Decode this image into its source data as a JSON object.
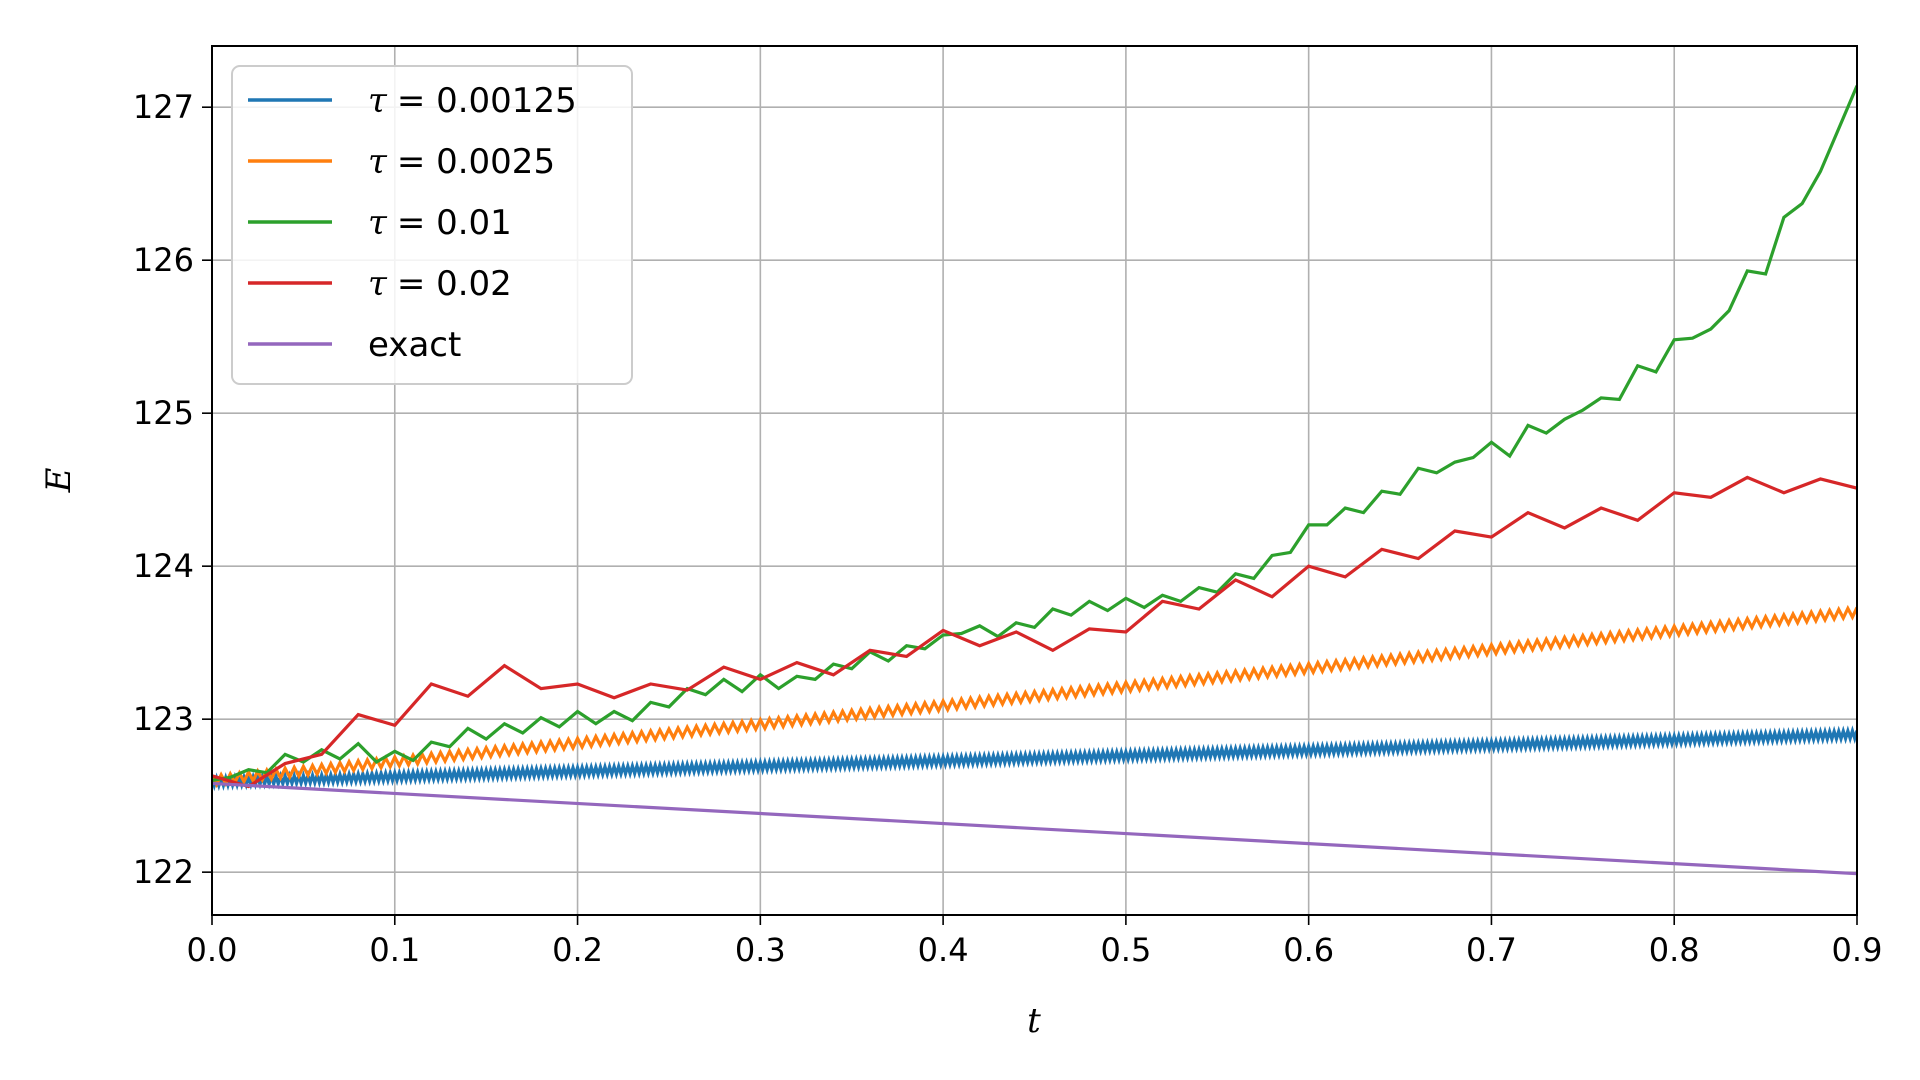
{
  "chart_data": {
    "type": "line",
    "xlabel": "t",
    "ylabel": "E",
    "xlim": [
      0.0,
      0.9
    ],
    "ylim": [
      121.72,
      127.4
    ],
    "xticks": [
      "0.0",
      "0.1",
      "0.2",
      "0.3",
      "0.4",
      "0.5",
      "0.6",
      "0.7",
      "0.8",
      "0.9"
    ],
    "yticks": [
      "122",
      "123",
      "124",
      "125",
      "126",
      "127"
    ],
    "grid": true,
    "legend_position": "upper-left",
    "series": [
      {
        "name": "τ = 0.00125",
        "legend_symbol": "τ",
        "legend_value": "= 0.00125",
        "color": "#1f77b4",
        "dt": 0.00125,
        "oscillating": true,
        "start": 122.59,
        "end": 122.9,
        "amplitude": 0.05
      },
      {
        "name": "τ = 0.0025",
        "legend_symbol": "τ",
        "legend_value": "= 0.0025",
        "color": "#ff7f0e",
        "dt": 0.0025,
        "oscillating": true,
        "start": 122.6,
        "end": 123.7,
        "amplitude": 0.06
      },
      {
        "name": "τ = 0.01",
        "legend_symbol": "τ",
        "legend_value": "= 0.01",
        "color": "#2ca02c",
        "x": [
          0.0,
          0.01,
          0.02,
          0.03,
          0.04,
          0.05,
          0.06,
          0.07,
          0.08,
          0.09,
          0.1,
          0.11,
          0.12,
          0.13,
          0.14,
          0.15,
          0.16,
          0.17,
          0.18,
          0.19,
          0.2,
          0.21,
          0.22,
          0.23,
          0.24,
          0.25,
          0.26,
          0.27,
          0.28,
          0.29,
          0.3,
          0.31,
          0.32,
          0.33,
          0.34,
          0.35,
          0.36,
          0.37,
          0.38,
          0.39,
          0.4,
          0.41,
          0.42,
          0.43,
          0.44,
          0.45,
          0.46,
          0.47,
          0.48,
          0.49,
          0.5,
          0.51,
          0.52,
          0.53,
          0.54,
          0.55,
          0.56,
          0.57,
          0.58,
          0.59,
          0.6,
          0.61,
          0.62,
          0.63,
          0.64,
          0.65,
          0.66,
          0.67,
          0.68,
          0.69,
          0.7,
          0.71,
          0.72,
          0.73,
          0.74,
          0.75,
          0.76,
          0.77,
          0.78,
          0.79,
          0.8,
          0.81,
          0.82,
          0.83,
          0.84,
          0.85,
          0.86,
          0.87,
          0.88,
          0.89,
          0.9
        ],
        "y": [
          122.6,
          122.62,
          122.67,
          122.65,
          122.77,
          122.72,
          122.8,
          122.74,
          122.84,
          122.72,
          122.79,
          122.73,
          122.85,
          122.82,
          122.94,
          122.87,
          122.97,
          122.91,
          123.01,
          122.95,
          123.05,
          122.97,
          123.05,
          122.99,
          123.11,
          123.08,
          123.2,
          123.16,
          123.26,
          123.18,
          123.29,
          123.2,
          123.28,
          123.26,
          123.36,
          123.33,
          123.44,
          123.38,
          123.48,
          123.46,
          123.55,
          123.56,
          123.61,
          123.54,
          123.63,
          123.6,
          123.72,
          123.68,
          123.77,
          123.71,
          123.79,
          123.73,
          123.81,
          123.77,
          123.86,
          123.83,
          123.95,
          123.92,
          124.07,
          124.09,
          124.27,
          124.27,
          124.38,
          124.35,
          124.49,
          124.47,
          124.64,
          124.61,
          124.68,
          124.71,
          124.81,
          124.72,
          124.92,
          124.87,
          124.96,
          125.02,
          125.1,
          125.09,
          125.31,
          125.27,
          125.48,
          125.49,
          125.55,
          125.67,
          125.93,
          125.91,
          126.28,
          126.37,
          126.58,
          126.86,
          127.14
        ]
      },
      {
        "name": "τ = 0.02",
        "legend_symbol": "τ",
        "legend_value": "= 0.02",
        "color": "#d62728",
        "x": [
          0.0,
          0.02,
          0.04,
          0.06,
          0.08,
          0.1,
          0.12,
          0.14,
          0.16,
          0.18,
          0.2,
          0.22,
          0.24,
          0.26,
          0.28,
          0.3,
          0.32,
          0.34,
          0.36,
          0.38,
          0.4,
          0.42,
          0.44,
          0.46,
          0.48,
          0.5,
          0.52,
          0.54,
          0.56,
          0.58,
          0.6,
          0.62,
          0.64,
          0.66,
          0.68,
          0.7,
          0.72,
          0.74,
          0.76,
          0.78,
          0.8,
          0.82,
          0.84,
          0.86,
          0.88,
          0.9
        ],
        "y": [
          122.63,
          122.56,
          122.71,
          122.77,
          123.03,
          122.96,
          123.23,
          123.15,
          123.35,
          123.2,
          123.23,
          123.14,
          123.23,
          123.19,
          123.34,
          123.26,
          123.37,
          123.29,
          123.45,
          123.41,
          123.58,
          123.48,
          123.57,
          123.45,
          123.59,
          123.57,
          123.77,
          123.72,
          123.91,
          123.8,
          124.0,
          123.93,
          124.11,
          124.05,
          124.23,
          124.19,
          124.35,
          124.25,
          124.38,
          124.3,
          124.48,
          124.45,
          124.58,
          124.48,
          124.57,
          124.51
        ]
      },
      {
        "name": "exact",
        "legend_symbol": "",
        "legend_value": "exact",
        "color": "#9467bd",
        "x": [
          0.0,
          0.9
        ],
        "y": [
          122.58,
          121.99
        ]
      }
    ]
  }
}
